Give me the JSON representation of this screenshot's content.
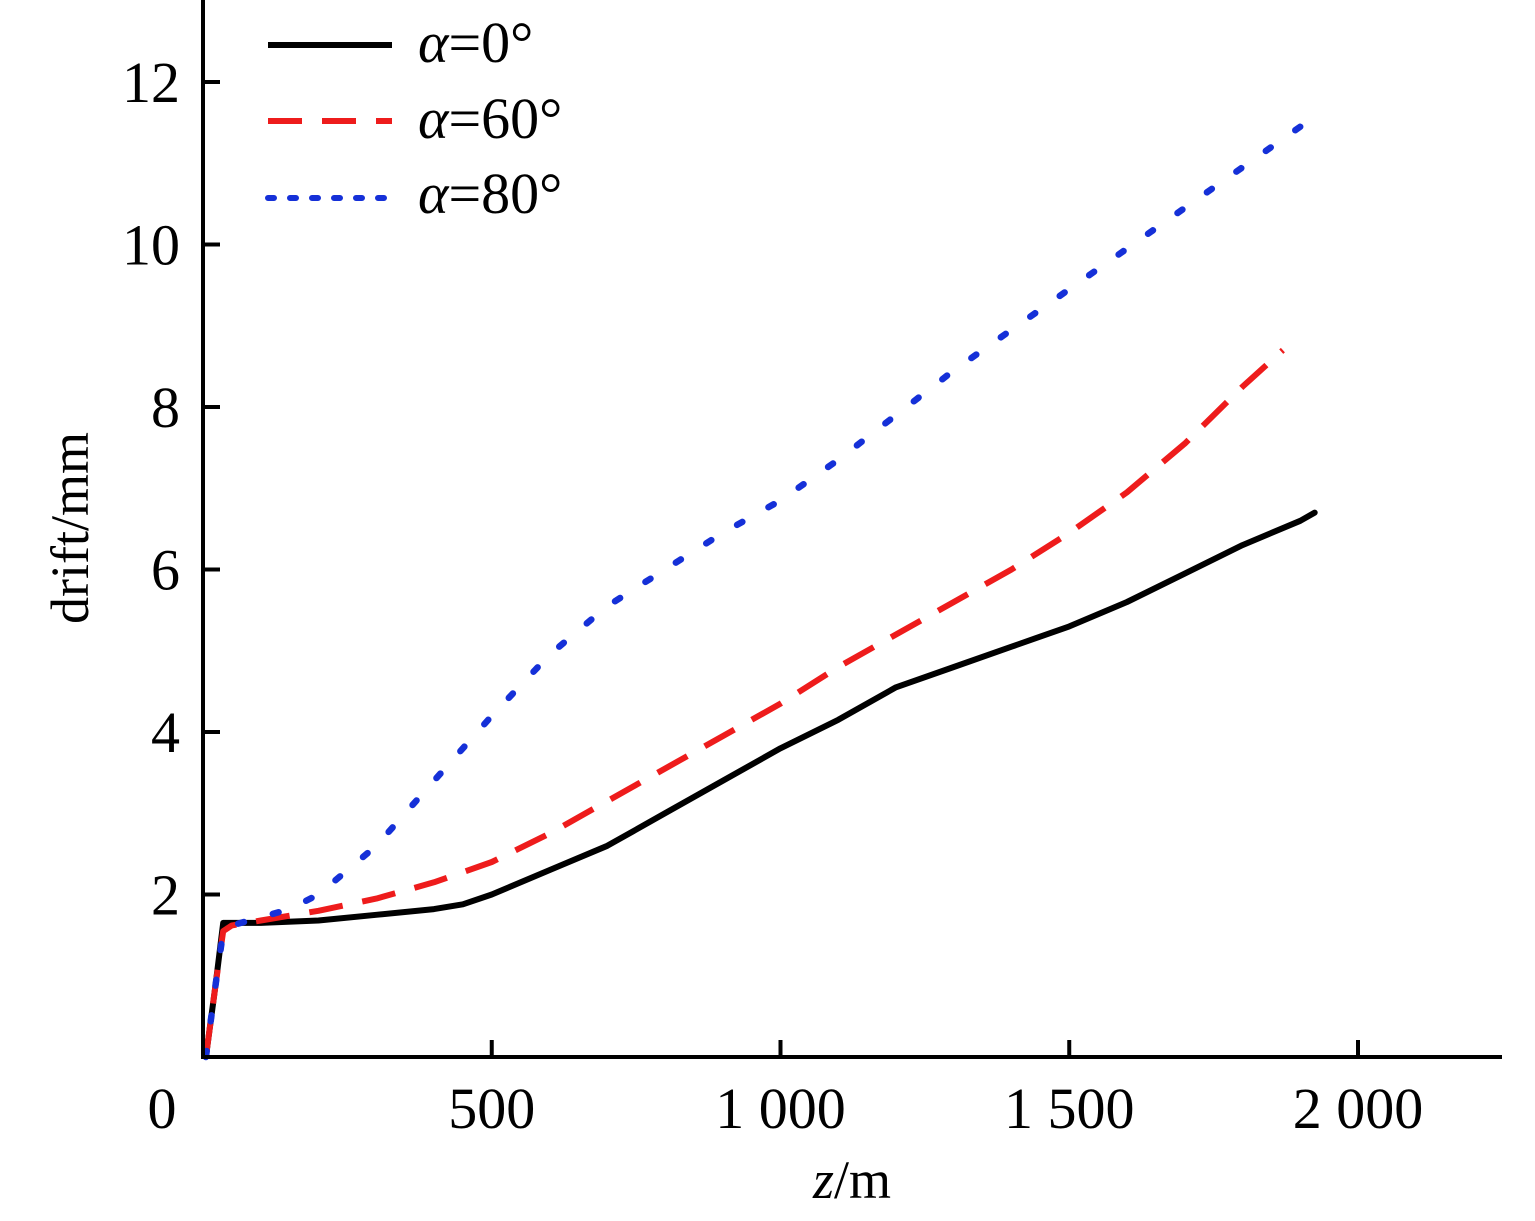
{
  "chart_data": {
    "type": "line",
    "xlabel_var": "z",
    "xlabel_unit": "/m",
    "ylabel": "drift/mm",
    "xlim": [
      -15,
      2200
    ],
    "ylim": [
      0,
      13
    ],
    "xticks": [
      {
        "value": 0,
        "label": "0"
      },
      {
        "value": 500,
        "label": "500"
      },
      {
        "value": 1000,
        "label": "1 000"
      },
      {
        "value": 1500,
        "label": "1 500"
      },
      {
        "value": 2000,
        "label": "2 000"
      }
    ],
    "yticks": [
      {
        "value": 2,
        "label": "2"
      },
      {
        "value": 4,
        "label": "4"
      },
      {
        "value": 6,
        "label": "6"
      },
      {
        "value": 8,
        "label": "8"
      },
      {
        "value": 10,
        "label": "10"
      },
      {
        "value": 12,
        "label": "12"
      }
    ],
    "legend_position": "top-left",
    "series": [
      {
        "name_var": "α",
        "name_value": "=0°",
        "color": "#000000",
        "style": "solid",
        "x": [
          5,
          22,
          35,
          50,
          100,
          200,
          300,
          400,
          450,
          500,
          600,
          700,
          800,
          900,
          1000,
          1100,
          1200,
          1300,
          1400,
          1500,
          1600,
          1700,
          1800,
          1900,
          1925
        ],
        "y": [
          0,
          0.9,
          1.65,
          1.65,
          1.65,
          1.68,
          1.75,
          1.82,
          1.88,
          2.0,
          2.3,
          2.6,
          3.0,
          3.4,
          3.8,
          4.15,
          4.55,
          4.8,
          5.05,
          5.3,
          5.6,
          5.95,
          6.3,
          6.6,
          6.7
        ]
      },
      {
        "name_var": "α",
        "name_value": "=60°",
        "color": "#ee1c1c",
        "style": "dashed",
        "x": [
          5,
          22,
          35,
          50,
          100,
          200,
          300,
          400,
          500,
          600,
          700,
          800,
          900,
          1000,
          1100,
          1200,
          1300,
          1400,
          1500,
          1600,
          1700,
          1800,
          1870
        ],
        "y": [
          0,
          0.9,
          1.55,
          1.62,
          1.68,
          1.8,
          1.95,
          2.15,
          2.4,
          2.75,
          3.15,
          3.55,
          3.95,
          4.35,
          4.8,
          5.2,
          5.6,
          6.0,
          6.45,
          6.95,
          7.55,
          8.25,
          8.7
        ]
      },
      {
        "name_var": "α",
        "name_value": "=80°",
        "color": "#1530d8",
        "style": "dotted",
        "x": [
          5,
          22,
          35,
          50,
          100,
          150,
          200,
          300,
          400,
          500,
          600,
          700,
          800,
          900,
          1000,
          1100,
          1200,
          1300,
          1400,
          1500,
          1600,
          1700,
          1800,
          1900,
          1925
        ],
        "y": [
          0,
          0.9,
          1.55,
          1.62,
          1.72,
          1.82,
          2.0,
          2.6,
          3.4,
          4.2,
          4.95,
          5.55,
          6.0,
          6.45,
          6.85,
          7.35,
          7.9,
          8.45,
          8.95,
          9.45,
          9.95,
          10.45,
          10.95,
          11.45,
          11.55
        ]
      }
    ]
  }
}
